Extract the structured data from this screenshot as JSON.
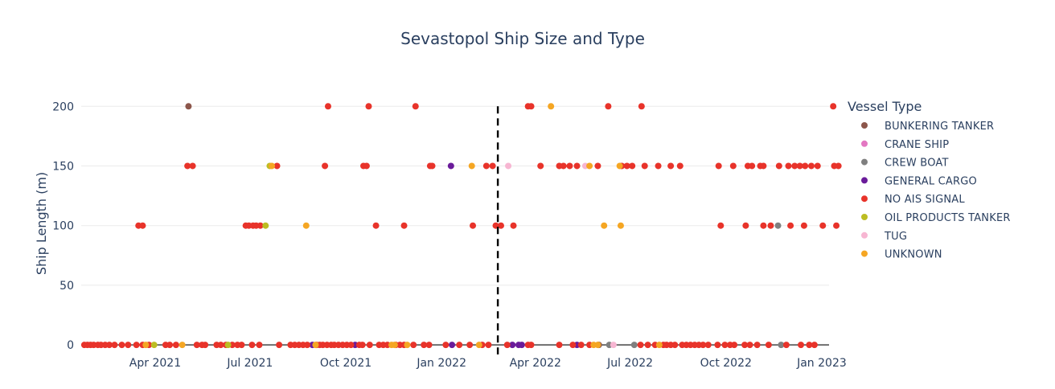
{
  "chart_data": {
    "type": "scatter",
    "title": "Sevastopol Ship Size and Type",
    "xlabel": "",
    "ylabel": "Ship Length (m)",
    "x_axis_type": "date",
    "xlim": [
      "2021-01-20",
      "2023-01-08"
    ],
    "ylim": [
      -8,
      215
    ],
    "x_ticks": [
      {
        "date": "2021-04-01",
        "label": "Apr 2021"
      },
      {
        "date": "2021-07-01",
        "label": "Jul 2021"
      },
      {
        "date": "2021-10-01",
        "label": "Oct 2021"
      },
      {
        "date": "2022-01-01",
        "label": "Jan 2022"
      },
      {
        "date": "2022-04-01",
        "label": "Apr 2022"
      },
      {
        "date": "2022-07-01",
        "label": "Jul 2022"
      },
      {
        "date": "2022-10-01",
        "label": "Oct 2022"
      },
      {
        "date": "2023-01-01",
        "label": "Jan 2023"
      }
    ],
    "y_ticks": [
      0,
      50,
      100,
      150,
      200
    ],
    "grid": true,
    "reference_line": {
      "date": "2022-02-24",
      "style": "dashed",
      "color": "#000000"
    },
    "legend": {
      "title": "Vessel Type",
      "placement": "right"
    },
    "series": [
      {
        "name": "BUNKERING TANKER",
        "color": "#8c564b",
        "points": [
          {
            "x": "2021-05-03",
            "y": 200
          },
          {
            "x": "2022-06-01",
            "y": 0
          }
        ]
      },
      {
        "name": "CRANE SHIP",
        "color": "#e377c2",
        "points": []
      },
      {
        "name": "CREW BOAT",
        "color": "#7f7f7f",
        "points": [
          {
            "x": "2022-06-11",
            "y": 0
          },
          {
            "x": "2022-07-05",
            "y": 0
          },
          {
            "x": "2022-11-20",
            "y": 100
          },
          {
            "x": "2022-11-23",
            "y": 0
          }
        ]
      },
      {
        "name": "GENERAL CARGO",
        "color": "#6a1b9a",
        "points": [
          {
            "x": "2021-08-30",
            "y": 0
          },
          {
            "x": "2021-10-10",
            "y": 0
          },
          {
            "x": "2022-01-10",
            "y": 150
          },
          {
            "x": "2022-01-11",
            "y": 0
          },
          {
            "x": "2022-03-10",
            "y": 0
          },
          {
            "x": "2022-03-16",
            "y": 0
          },
          {
            "x": "2022-03-19",
            "y": 0
          },
          {
            "x": "2022-05-11",
            "y": 0
          }
        ]
      },
      {
        "name": "NO AIS SIGNAL",
        "color": "#e8332a",
        "points": [
          {
            "x": "2021-01-23",
            "y": 0
          },
          {
            "x": "2021-01-26",
            "y": 0
          },
          {
            "x": "2021-01-29",
            "y": 0
          },
          {
            "x": "2021-02-01",
            "y": 0
          },
          {
            "x": "2021-02-05",
            "y": 0
          },
          {
            "x": "2021-02-08",
            "y": 0
          },
          {
            "x": "2021-02-12",
            "y": 0
          },
          {
            "x": "2021-02-16",
            "y": 0
          },
          {
            "x": "2021-02-21",
            "y": 0
          },
          {
            "x": "2021-02-28",
            "y": 0
          },
          {
            "x": "2021-03-06",
            "y": 0
          },
          {
            "x": "2021-03-14",
            "y": 0
          },
          {
            "x": "2021-03-20",
            "y": 0
          },
          {
            "x": "2021-03-26",
            "y": 0
          },
          {
            "x": "2021-04-11",
            "y": 0
          },
          {
            "x": "2021-04-15",
            "y": 0
          },
          {
            "x": "2021-04-21",
            "y": 0
          },
          {
            "x": "2021-05-11",
            "y": 0
          },
          {
            "x": "2021-05-16",
            "y": 0
          },
          {
            "x": "2021-05-19",
            "y": 0
          },
          {
            "x": "2021-05-30",
            "y": 0
          },
          {
            "x": "2021-06-03",
            "y": 0
          },
          {
            "x": "2021-06-08",
            "y": 0
          },
          {
            "x": "2021-06-14",
            "y": 0
          },
          {
            "x": "2021-06-19",
            "y": 0
          },
          {
            "x": "2021-06-23",
            "y": 0
          },
          {
            "x": "2021-07-03",
            "y": 0
          },
          {
            "x": "2021-07-10",
            "y": 0
          },
          {
            "x": "2021-07-29",
            "y": 0
          },
          {
            "x": "2021-08-09",
            "y": 0
          },
          {
            "x": "2021-08-13",
            "y": 0
          },
          {
            "x": "2021-08-17",
            "y": 0
          },
          {
            "x": "2021-08-21",
            "y": 0
          },
          {
            "x": "2021-08-25",
            "y": 0
          },
          {
            "x": "2021-09-03",
            "y": 0
          },
          {
            "x": "2021-09-06",
            "y": 0
          },
          {
            "x": "2021-09-09",
            "y": 0
          },
          {
            "x": "2021-09-13",
            "y": 0
          },
          {
            "x": "2021-09-17",
            "y": 0
          },
          {
            "x": "2021-09-20",
            "y": 0
          },
          {
            "x": "2021-09-24",
            "y": 0
          },
          {
            "x": "2021-09-28",
            "y": 0
          },
          {
            "x": "2021-10-02",
            "y": 0
          },
          {
            "x": "2021-10-06",
            "y": 0
          },
          {
            "x": "2021-10-14",
            "y": 0
          },
          {
            "x": "2021-10-17",
            "y": 0
          },
          {
            "x": "2021-10-24",
            "y": 0
          },
          {
            "x": "2021-11-02",
            "y": 0
          },
          {
            "x": "2021-11-06",
            "y": 0
          },
          {
            "x": "2021-11-10",
            "y": 0
          },
          {
            "x": "2021-11-18",
            "y": 0
          },
          {
            "x": "2021-11-22",
            "y": 0
          },
          {
            "x": "2021-11-26",
            "y": 0
          },
          {
            "x": "2021-12-05",
            "y": 0
          },
          {
            "x": "2021-12-15",
            "y": 0
          },
          {
            "x": "2021-12-20",
            "y": 0
          },
          {
            "x": "2022-01-05",
            "y": 0
          },
          {
            "x": "2022-01-18",
            "y": 0
          },
          {
            "x": "2022-01-28",
            "y": 0
          },
          {
            "x": "2022-02-09",
            "y": 0
          },
          {
            "x": "2022-02-15",
            "y": 0
          },
          {
            "x": "2022-03-05",
            "y": 0
          },
          {
            "x": "2022-03-25",
            "y": 0
          },
          {
            "x": "2022-03-28",
            "y": 0
          },
          {
            "x": "2022-04-24",
            "y": 0
          },
          {
            "x": "2022-05-07",
            "y": 0
          },
          {
            "x": "2022-05-15",
            "y": 0
          },
          {
            "x": "2022-05-23",
            "y": 0
          },
          {
            "x": "2022-07-11",
            "y": 0
          },
          {
            "x": "2022-07-18",
            "y": 0
          },
          {
            "x": "2022-07-25",
            "y": 0
          },
          {
            "x": "2022-08-02",
            "y": 0
          },
          {
            "x": "2022-08-05",
            "y": 0
          },
          {
            "x": "2022-08-09",
            "y": 0
          },
          {
            "x": "2022-08-13",
            "y": 0
          },
          {
            "x": "2022-08-20",
            "y": 0
          },
          {
            "x": "2022-08-24",
            "y": 0
          },
          {
            "x": "2022-08-28",
            "y": 0
          },
          {
            "x": "2022-09-01",
            "y": 0
          },
          {
            "x": "2022-09-05",
            "y": 0
          },
          {
            "x": "2022-09-09",
            "y": 0
          },
          {
            "x": "2022-09-14",
            "y": 0
          },
          {
            "x": "2022-09-23",
            "y": 0
          },
          {
            "x": "2022-09-30",
            "y": 0
          },
          {
            "x": "2022-10-05",
            "y": 0
          },
          {
            "x": "2022-10-09",
            "y": 0
          },
          {
            "x": "2022-10-19",
            "y": 0
          },
          {
            "x": "2022-10-24",
            "y": 0
          },
          {
            "x": "2022-10-31",
            "y": 0
          },
          {
            "x": "2022-11-11",
            "y": 0
          },
          {
            "x": "2022-11-28",
            "y": 0
          },
          {
            "x": "2022-12-12",
            "y": 0
          },
          {
            "x": "2022-12-20",
            "y": 0
          },
          {
            "x": "2022-12-25",
            "y": 0
          },
          {
            "x": "2021-03-16",
            "y": 100
          },
          {
            "x": "2021-03-20",
            "y": 100
          },
          {
            "x": "2021-06-27",
            "y": 100
          },
          {
            "x": "2021-06-30",
            "y": 100
          },
          {
            "x": "2021-07-04",
            "y": 100
          },
          {
            "x": "2021-07-07",
            "y": 100
          },
          {
            "x": "2021-07-11",
            "y": 100
          },
          {
            "x": "2021-10-30",
            "y": 100
          },
          {
            "x": "2021-11-26",
            "y": 100
          },
          {
            "x": "2022-01-31",
            "y": 100
          },
          {
            "x": "2022-02-22",
            "y": 100
          },
          {
            "x": "2022-02-27",
            "y": 100
          },
          {
            "x": "2022-03-11",
            "y": 100
          },
          {
            "x": "2022-09-26",
            "y": 100
          },
          {
            "x": "2022-10-20",
            "y": 100
          },
          {
            "x": "2022-11-06",
            "y": 100
          },
          {
            "x": "2022-11-13",
            "y": 100
          },
          {
            "x": "2022-12-02",
            "y": 100
          },
          {
            "x": "2022-12-15",
            "y": 100
          },
          {
            "x": "2023-01-02",
            "y": 100
          },
          {
            "x": "2023-01-15",
            "y": 100
          },
          {
            "x": "2021-05-02",
            "y": 150
          },
          {
            "x": "2021-05-07",
            "y": 150
          },
          {
            "x": "2021-07-27",
            "y": 150
          },
          {
            "x": "2021-09-11",
            "y": 150
          },
          {
            "x": "2021-10-18",
            "y": 150
          },
          {
            "x": "2021-10-21",
            "y": 150
          },
          {
            "x": "2021-12-21",
            "y": 150
          },
          {
            "x": "2021-12-23",
            "y": 150
          },
          {
            "x": "2022-02-13",
            "y": 150
          },
          {
            "x": "2022-02-19",
            "y": 150
          },
          {
            "x": "2022-04-06",
            "y": 150
          },
          {
            "x": "2022-04-24",
            "y": 150
          },
          {
            "x": "2022-04-28",
            "y": 150
          },
          {
            "x": "2022-05-04",
            "y": 150
          },
          {
            "x": "2022-05-11",
            "y": 150
          },
          {
            "x": "2022-05-31",
            "y": 150
          },
          {
            "x": "2022-06-23",
            "y": 150
          },
          {
            "x": "2022-06-28",
            "y": 150
          },
          {
            "x": "2022-07-03",
            "y": 150
          },
          {
            "x": "2022-07-15",
            "y": 150
          },
          {
            "x": "2022-07-28",
            "y": 150
          },
          {
            "x": "2022-08-09",
            "y": 150
          },
          {
            "x": "2022-08-18",
            "y": 150
          },
          {
            "x": "2022-09-24",
            "y": 150
          },
          {
            "x": "2022-10-08",
            "y": 150
          },
          {
            "x": "2022-10-22",
            "y": 150
          },
          {
            "x": "2022-10-26",
            "y": 150
          },
          {
            "x": "2022-11-03",
            "y": 150
          },
          {
            "x": "2022-11-06",
            "y": 150
          },
          {
            "x": "2022-11-21",
            "y": 150
          },
          {
            "x": "2022-11-30",
            "y": 150
          },
          {
            "x": "2022-12-06",
            "y": 150
          },
          {
            "x": "2022-12-11",
            "y": 150
          },
          {
            "x": "2022-12-16",
            "y": 150
          },
          {
            "x": "2022-12-22",
            "y": 150
          },
          {
            "x": "2022-12-28",
            "y": 150
          },
          {
            "x": "2023-01-13",
            "y": 150
          },
          {
            "x": "2023-01-17",
            "y": 150
          },
          {
            "x": "2021-09-14",
            "y": 200
          },
          {
            "x": "2021-10-23",
            "y": 200
          },
          {
            "x": "2021-12-07",
            "y": 200
          },
          {
            "x": "2022-03-25",
            "y": 200
          },
          {
            "x": "2022-03-28",
            "y": 200
          },
          {
            "x": "2022-06-10",
            "y": 200
          },
          {
            "x": "2022-07-12",
            "y": 200
          },
          {
            "x": "2023-01-12",
            "y": 200
          }
        ]
      },
      {
        "name": "OIL PRODUCTS TANKER",
        "color": "#bcbd22",
        "points": [
          {
            "x": "2021-03-31",
            "y": 0
          },
          {
            "x": "2021-06-10",
            "y": 0
          },
          {
            "x": "2021-07-16",
            "y": 100
          },
          {
            "x": "2021-07-20",
            "y": 150
          }
        ]
      },
      {
        "name": "TUG",
        "color": "#f7b6d2",
        "points": [
          {
            "x": "2022-03-06",
            "y": 150
          },
          {
            "x": "2022-05-19",
            "y": 150
          },
          {
            "x": "2022-06-15",
            "y": 0
          }
        ]
      },
      {
        "name": "UNKNOWN",
        "color": "#f5a623",
        "points": [
          {
            "x": "2021-03-23",
            "y": 0
          },
          {
            "x": "2021-04-27",
            "y": 0
          },
          {
            "x": "2021-07-22",
            "y": 150
          },
          {
            "x": "2021-08-24",
            "y": 100
          },
          {
            "x": "2021-09-02",
            "y": 0
          },
          {
            "x": "2021-11-14",
            "y": 0
          },
          {
            "x": "2021-11-17",
            "y": 0
          },
          {
            "x": "2021-11-29",
            "y": 0
          },
          {
            "x": "2022-01-30",
            "y": 150
          },
          {
            "x": "2022-02-06",
            "y": 0
          },
          {
            "x": "2022-04-16",
            "y": 200
          },
          {
            "x": "2022-05-27",
            "y": 0
          },
          {
            "x": "2022-05-31",
            "y": 0
          },
          {
            "x": "2022-05-23",
            "y": 150
          },
          {
            "x": "2022-06-06",
            "y": 100
          },
          {
            "x": "2022-06-22",
            "y": 100
          },
          {
            "x": "2022-06-21",
            "y": 150
          },
          {
            "x": "2022-07-29",
            "y": 0
          }
        ]
      }
    ]
  }
}
